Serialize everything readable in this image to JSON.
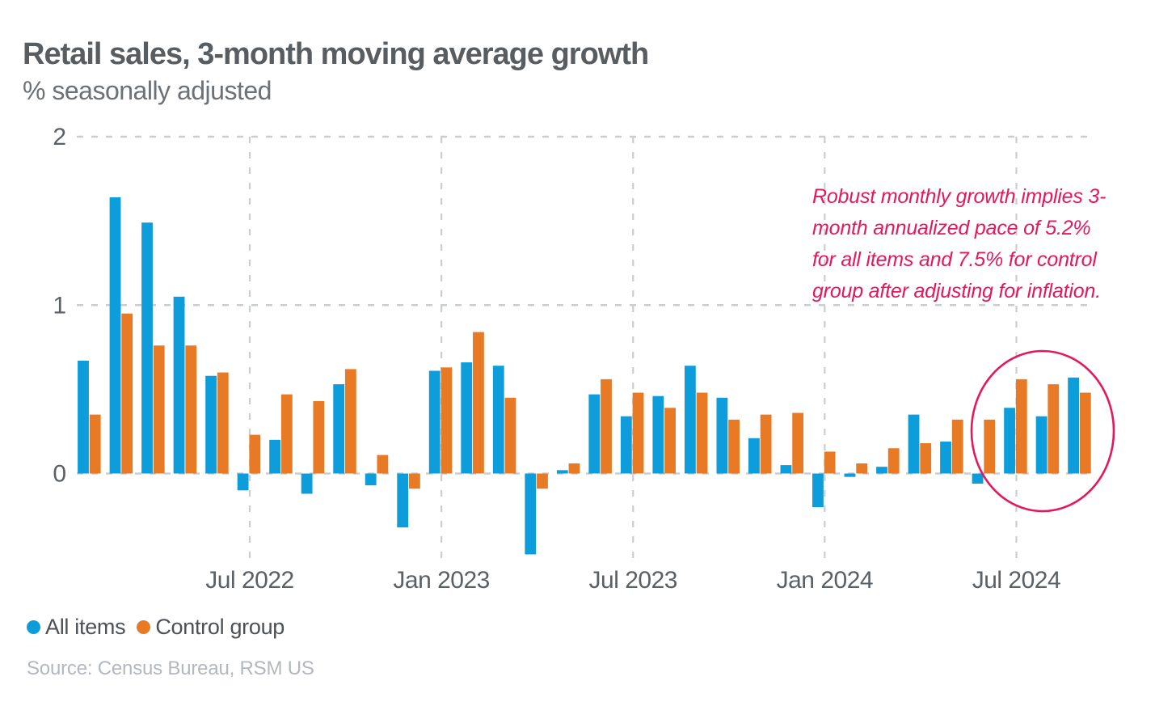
{
  "source_label": "Source: Census Bureau, RSM US",
  "annotation": {
    "color": "#e5175e",
    "lines": [
      "Robust monthly growth implies 3-",
      "month annualized pace of 5.2%",
      "for all items and 7.5% for control",
      "group after adjusting for inflation."
    ]
  },
  "chart_data": {
    "type": "bar",
    "title": "Retail sales, 3-month moving average growth",
    "subtitle": "% seasonally adjusted",
    "xlabel": "",
    "ylabel": "% seasonally adjusted",
    "grid": "dashed",
    "legend_position": "bottom-left",
    "ylim": [
      -0.55,
      2.05
    ],
    "y_ticks": [
      0,
      1,
      2
    ],
    "categories": [
      "Feb 2022",
      "Mar 2022",
      "Apr 2022",
      "May 2022",
      "Jun 2022",
      "Jul 2022",
      "Aug 2022",
      "Sep 2022",
      "Oct 2022",
      "Nov 2022",
      "Dec 2022",
      "Jan 2023",
      "Feb 2023",
      "Mar 2023",
      "Apr 2023",
      "May 2023",
      "Jun 2023",
      "Jul 2023",
      "Aug 2023",
      "Sep 2023",
      "Oct 2023",
      "Nov 2023",
      "Dec 2023",
      "Jan 2024",
      "Feb 2024",
      "Mar 2024",
      "Apr 2024",
      "May 2024",
      "Jun 2024",
      "Jul 2024",
      "Aug 2024",
      "Sep 2024"
    ],
    "x_tick_labels": [
      "Jul 2022",
      "Jan 2023",
      "Jul 2023",
      "Jan 2024",
      "Jul 2024"
    ],
    "x_tick_indices": [
      5,
      11,
      17,
      23,
      29
    ],
    "series": [
      {
        "name": "All items",
        "color": "#0d9dda",
        "values": [
          0.67,
          1.64,
          1.49,
          1.05,
          0.58,
          -0.1,
          0.2,
          -0.12,
          0.53,
          -0.07,
          -0.32,
          0.61,
          0.66,
          0.64,
          -0.48,
          0.02,
          0.47,
          0.34,
          0.46,
          0.64,
          0.45,
          0.21,
          0.05,
          -0.2,
          -0.02,
          0.04,
          0.35,
          0.19,
          -0.06,
          0.39,
          0.34,
          0.57
        ]
      },
      {
        "name": "Control group",
        "color": "#e87a25",
        "values": [
          0.35,
          0.95,
          0.76,
          0.76,
          0.6,
          0.23,
          0.47,
          0.43,
          0.62,
          0.11,
          -0.09,
          0.63,
          0.84,
          0.45,
          -0.09,
          0.06,
          0.56,
          0.48,
          0.39,
          0.48,
          0.32,
          0.35,
          0.36,
          0.13,
          0.06,
          0.15,
          0.18,
          0.32,
          0.32,
          0.56,
          0.53,
          0.48
        ]
      }
    ],
    "highlight_ellipse": {
      "covers_categories": [
        "Jun 2024",
        "Jul 2024",
        "Aug 2024",
        "Sep 2024"
      ],
      "color": "#e5175e"
    }
  }
}
